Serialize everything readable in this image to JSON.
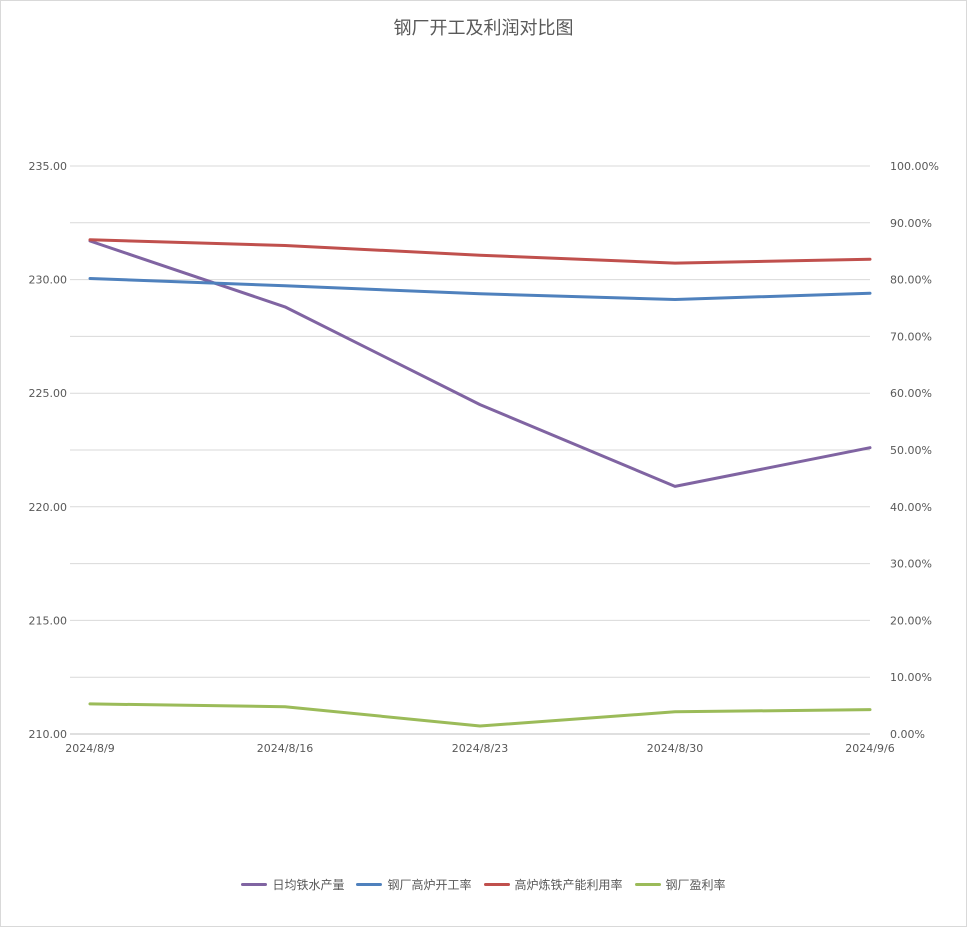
{
  "chart_data": {
    "type": "line",
    "title": "钢厂开工及利润对比图",
    "categories": [
      "2024/8/9",
      "2024/8/16",
      "2024/8/23",
      "2024/8/30",
      "2024/9/6"
    ],
    "y_left": {
      "min": 210,
      "max": 235,
      "step": 5,
      "tick_labels": [
        "210.00",
        "215.00",
        "220.00",
        "225.00",
        "230.00",
        "235.00"
      ]
    },
    "y_right": {
      "min": 0,
      "max": 100,
      "step": 10,
      "tick_labels": [
        "0.00%",
        "10.00%",
        "20.00%",
        "30.00%",
        "40.00%",
        "50.00%",
        "60.00%",
        "70.00%",
        "80.00%",
        "90.00%",
        "100.00%"
      ]
    },
    "grid": true,
    "legend_position": "bottom",
    "series": [
      {
        "name": "日均铁水产量",
        "axis": "left",
        "color": "#8064a2",
        "values": [
          231.7,
          228.8,
          224.5,
          220.9,
          222.6
        ]
      },
      {
        "name": "钢厂高炉开工率",
        "axis": "right",
        "color": "#4f81bd",
        "values": [
          80.2,
          78.9,
          77.5,
          76.5,
          77.6
        ]
      },
      {
        "name": "高炉炼铁产能利用率",
        "axis": "right",
        "color": "#c0504d",
        "values": [
          87.0,
          86.0,
          84.3,
          82.9,
          83.6
        ]
      },
      {
        "name": "钢厂盈利率",
        "axis": "right",
        "color": "#9bbb59",
        "values": [
          5.3,
          4.8,
          1.4,
          3.9,
          4.3
        ]
      }
    ]
  }
}
